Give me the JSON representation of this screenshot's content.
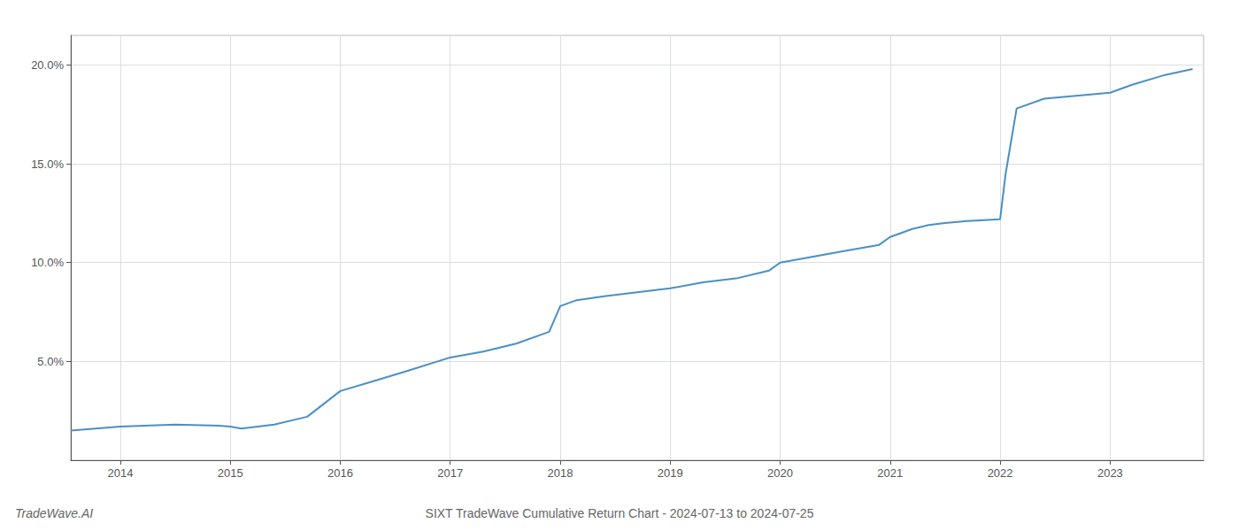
{
  "chart_data": {
    "type": "line",
    "title": "SIXT TradeWave Cumulative Return Chart - 2024-07-13 to 2024-07-25",
    "annotations": [
      "TradeWave.AI"
    ],
    "x": [
      2013.55,
      2014.0,
      2014.5,
      2014.9,
      2015.0,
      2015.1,
      2015.4,
      2015.7,
      2016.0,
      2016.3,
      2016.6,
      2017.0,
      2017.3,
      2017.6,
      2017.9,
      2018.0,
      2018.15,
      2018.4,
      2018.7,
      2019.0,
      2019.3,
      2019.6,
      2019.9,
      2020.0,
      2020.3,
      2020.6,
      2020.9,
      2021.0,
      2021.2,
      2021.35,
      2021.5,
      2021.7,
      2021.85,
      2022.0,
      2022.05,
      2022.15,
      2022.4,
      2022.6,
      2022.8,
      2023.0,
      2023.2,
      2023.5,
      2023.75
    ],
    "values": [
      1.5,
      1.7,
      1.8,
      1.75,
      1.7,
      1.6,
      1.8,
      2.2,
      3.5,
      4.0,
      4.5,
      5.2,
      5.5,
      5.9,
      6.5,
      7.8,
      8.1,
      8.3,
      8.5,
      8.7,
      9.0,
      9.2,
      9.6,
      10.0,
      10.3,
      10.6,
      10.9,
      11.3,
      11.7,
      11.9,
      12.0,
      12.1,
      12.15,
      12.2,
      14.5,
      17.8,
      18.3,
      18.4,
      18.5,
      18.6,
      19.0,
      19.5,
      19.8
    ],
    "color": "#4a90c4",
    "xlim": [
      2013.55,
      2023.85
    ],
    "xticks": [
      2014,
      2015,
      2016,
      2017,
      2018,
      2019,
      2020,
      2021,
      2022,
      2023
    ],
    "ylim": [
      0,
      21.5
    ],
    "yticks": [
      {
        "value": 5.0,
        "label": "5.0%"
      },
      {
        "value": 10.0,
        "label": "10.0%"
      },
      {
        "value": 15.0,
        "label": "15.0%"
      },
      {
        "value": 20.0,
        "label": "20.0%"
      }
    ],
    "grid": true
  }
}
